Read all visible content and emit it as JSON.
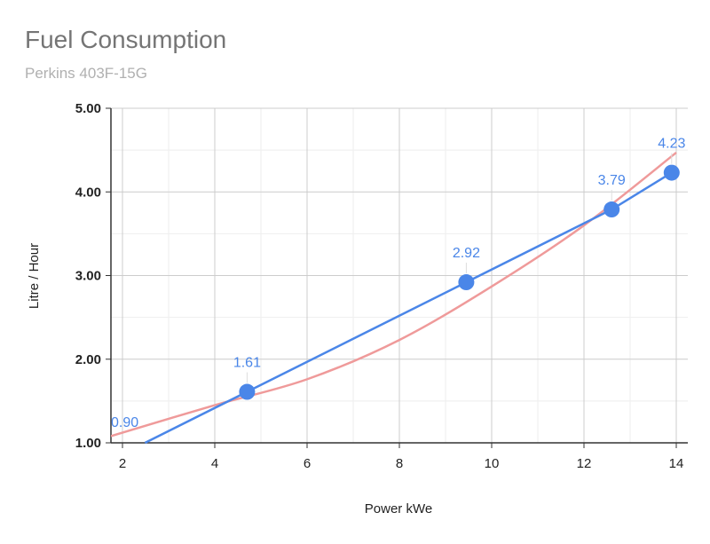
{
  "chart_data": {
    "type": "line",
    "title": "Fuel Consumption",
    "subtitle": "Perkins 403F-15G",
    "xlabel": "Power kWe",
    "ylabel": "Litre / Hour",
    "xlim": [
      1.75,
      14.25
    ],
    "ylim": [
      1.0,
      5.0
    ],
    "x_ticks": [
      2,
      4,
      6,
      8,
      10,
      12,
      14
    ],
    "y_ticks": [
      1.0,
      2.0,
      3.0,
      4.0,
      5.0
    ],
    "y_tick_labels": [
      "1.00",
      "2.00",
      "3.00",
      "4.00",
      "5.00"
    ],
    "grid": true,
    "series": [
      {
        "type": "line",
        "color": "#4a86e8",
        "points": [
          {
            "x": 4.7,
            "y": 1.61,
            "label": "1.61"
          },
          {
            "x": 9.45,
            "y": 2.92,
            "label": "2.92"
          },
          {
            "x": 12.6,
            "y": 3.79,
            "label": "3.79"
          },
          {
            "x": 13.9,
            "y": 4.23,
            "label": "4.23"
          }
        ]
      },
      {
        "type": "trendline",
        "color": "#ef9a9a",
        "points": [
          {
            "x": 1.75,
            "y": 1.08
          },
          {
            "x": 4.0,
            "y": 1.45
          },
          {
            "x": 6.0,
            "y": 1.76
          },
          {
            "x": 8.0,
            "y": 2.23
          },
          {
            "x": 10.0,
            "y": 2.87
          },
          {
            "x": 12.0,
            "y": 3.6
          },
          {
            "x": 14.0,
            "y": 4.47
          }
        ]
      }
    ],
    "annotations": [
      {
        "x": 1.75,
        "y": 1.0,
        "label": "0.90"
      }
    ]
  }
}
